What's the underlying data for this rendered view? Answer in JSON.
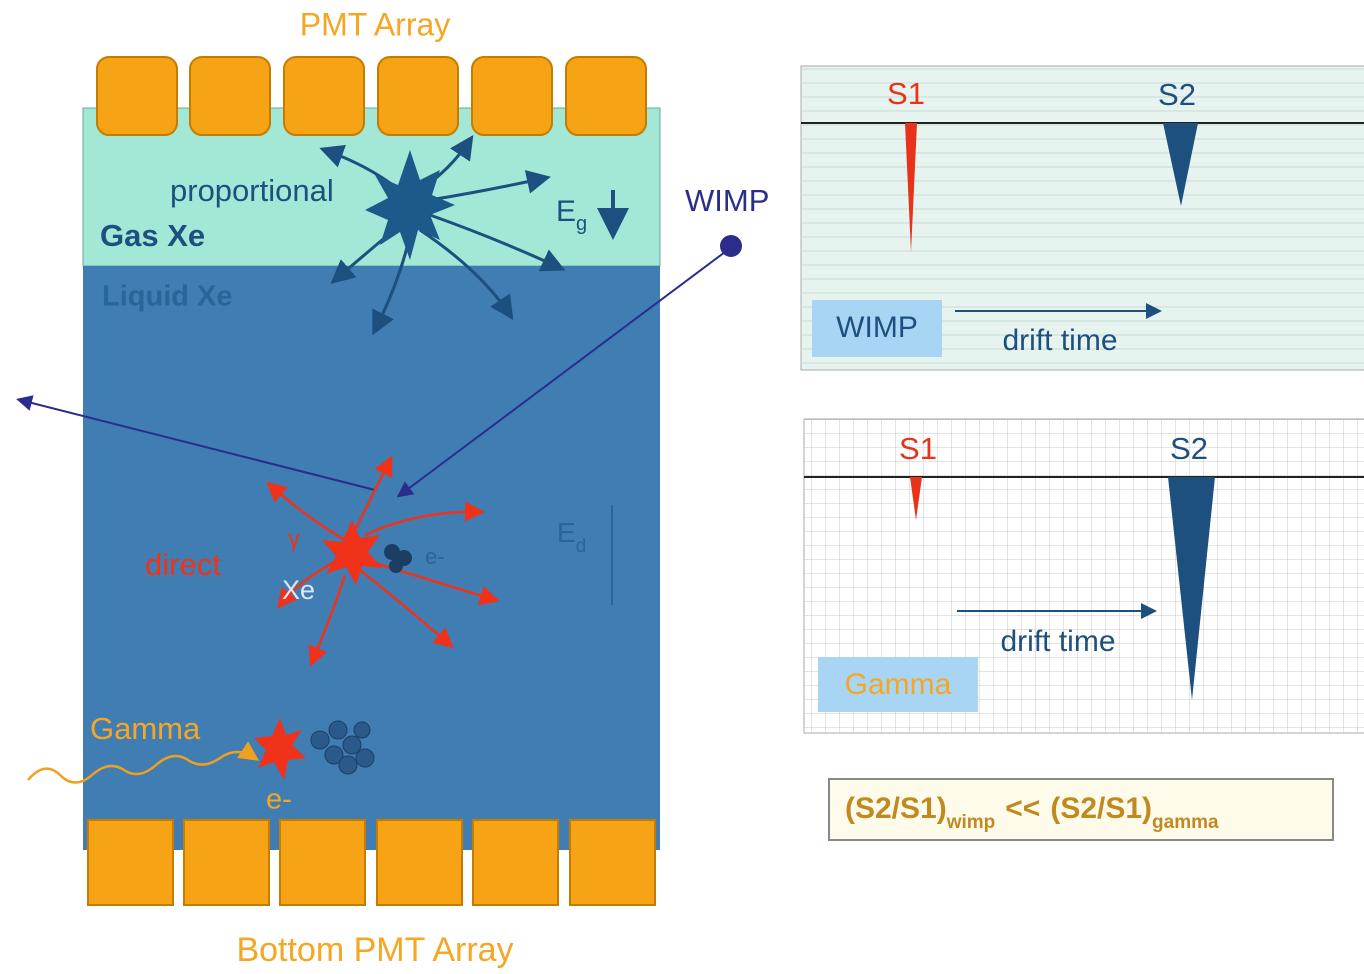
{
  "detector": {
    "top_label": "PMT Array",
    "bottom_label": "Bottom PMT Array",
    "gas_label": "Gas Xe",
    "liquid_label": "Liquid Xe",
    "proportional_label": "proportional",
    "gas_field": {
      "symbol": "E",
      "subscript": "g"
    },
    "drift_field": {
      "symbol": "E",
      "subscript": "d"
    },
    "direct_label": "direct",
    "gamma_symbol": "γ",
    "xe_label": "Xe",
    "electron_label": "e-",
    "gamma_label": "Gamma",
    "gamma_electron_label": "e-"
  },
  "wimp_label": "WIMP",
  "panels": [
    {
      "s1": "S1",
      "s2": "S2",
      "event": "WIMP",
      "axis": "drift time"
    },
    {
      "s1": "S1",
      "s2": "S2",
      "event": "Gamma",
      "axis": "drift time"
    }
  ],
  "ratio": {
    "left": "(S2/S1)",
    "left_sub": "wimp",
    "operator": "<<",
    "right": "(S2/S1)",
    "right_sub": "gamma"
  }
}
